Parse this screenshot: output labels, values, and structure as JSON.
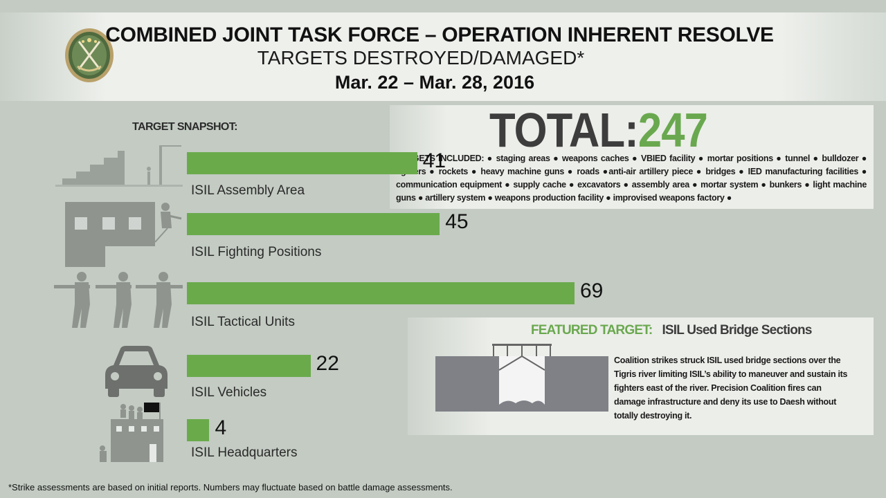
{
  "header": {
    "title": "COMBINED JOINT TASK FORCE – OPERATION INHERENT RESOLVE",
    "subtitle": "TARGETS DESTROYED/DAMAGED*",
    "date_range": "Mar. 22 – Mar. 28,  2016"
  },
  "snapshot_label": "TARGET SNAPSHOT:",
  "total": {
    "label": "TOTAL:",
    "value": "247",
    "targets_included": "TARGETS INCLUDED: ● staging areas ● weapons caches ● VBIED facility ● mortar positions ● tunnel ● bulldozer ● fighters ● rockets ● heavy machine guns ● roads ●anti-air artillery piece ● bridges ● IED manufacturing facilities ● communication equipment ● supply cache ● excavators ● assembly area ● mortar system ● bunkers ● light machine guns ● artillery system ● weapons production facility ● improvised weapons factory ●"
  },
  "chart_data": {
    "type": "bar",
    "orientation": "horizontal",
    "categories": [
      "ISIL Assembly Area",
      "ISIL Fighting Positions",
      "ISIL Tactical Units",
      "ISIL Vehicles",
      "ISIL Headquarters"
    ],
    "values": [
      41,
      45,
      69,
      22,
      4
    ],
    "value_labels": [
      "41",
      "45",
      "69",
      "22",
      "4"
    ],
    "icons": [
      "stairs-wall-icon",
      "building-sniper-icon",
      "soldiers-icon",
      "car-icon",
      "headquarters-icon"
    ],
    "bar_color": "#6aaa4b",
    "grid": false
  },
  "featured": {
    "label": "FEATURED TARGET:",
    "target": "ISIL Used Bridge Sections",
    "description": "Coalition strikes struck ISIL used bridge sections over the Tigris river limiting ISIL’s ability to maneuver and sustain its fighters east of the river. Precision Coalition fires can damage infrastructure and deny its use to Daesh without totally destroying it."
  },
  "footnote": "*Strike assessments are based on initial reports. Numbers may fluctuate based on battle damage assessments.",
  "colors": {
    "background": "#c3cbc3",
    "accent_green": "#6aa84f",
    "bar_green": "#6aaa4b",
    "dark_text": "#3d3d3d",
    "icon_gray": "#8a8f8a"
  }
}
